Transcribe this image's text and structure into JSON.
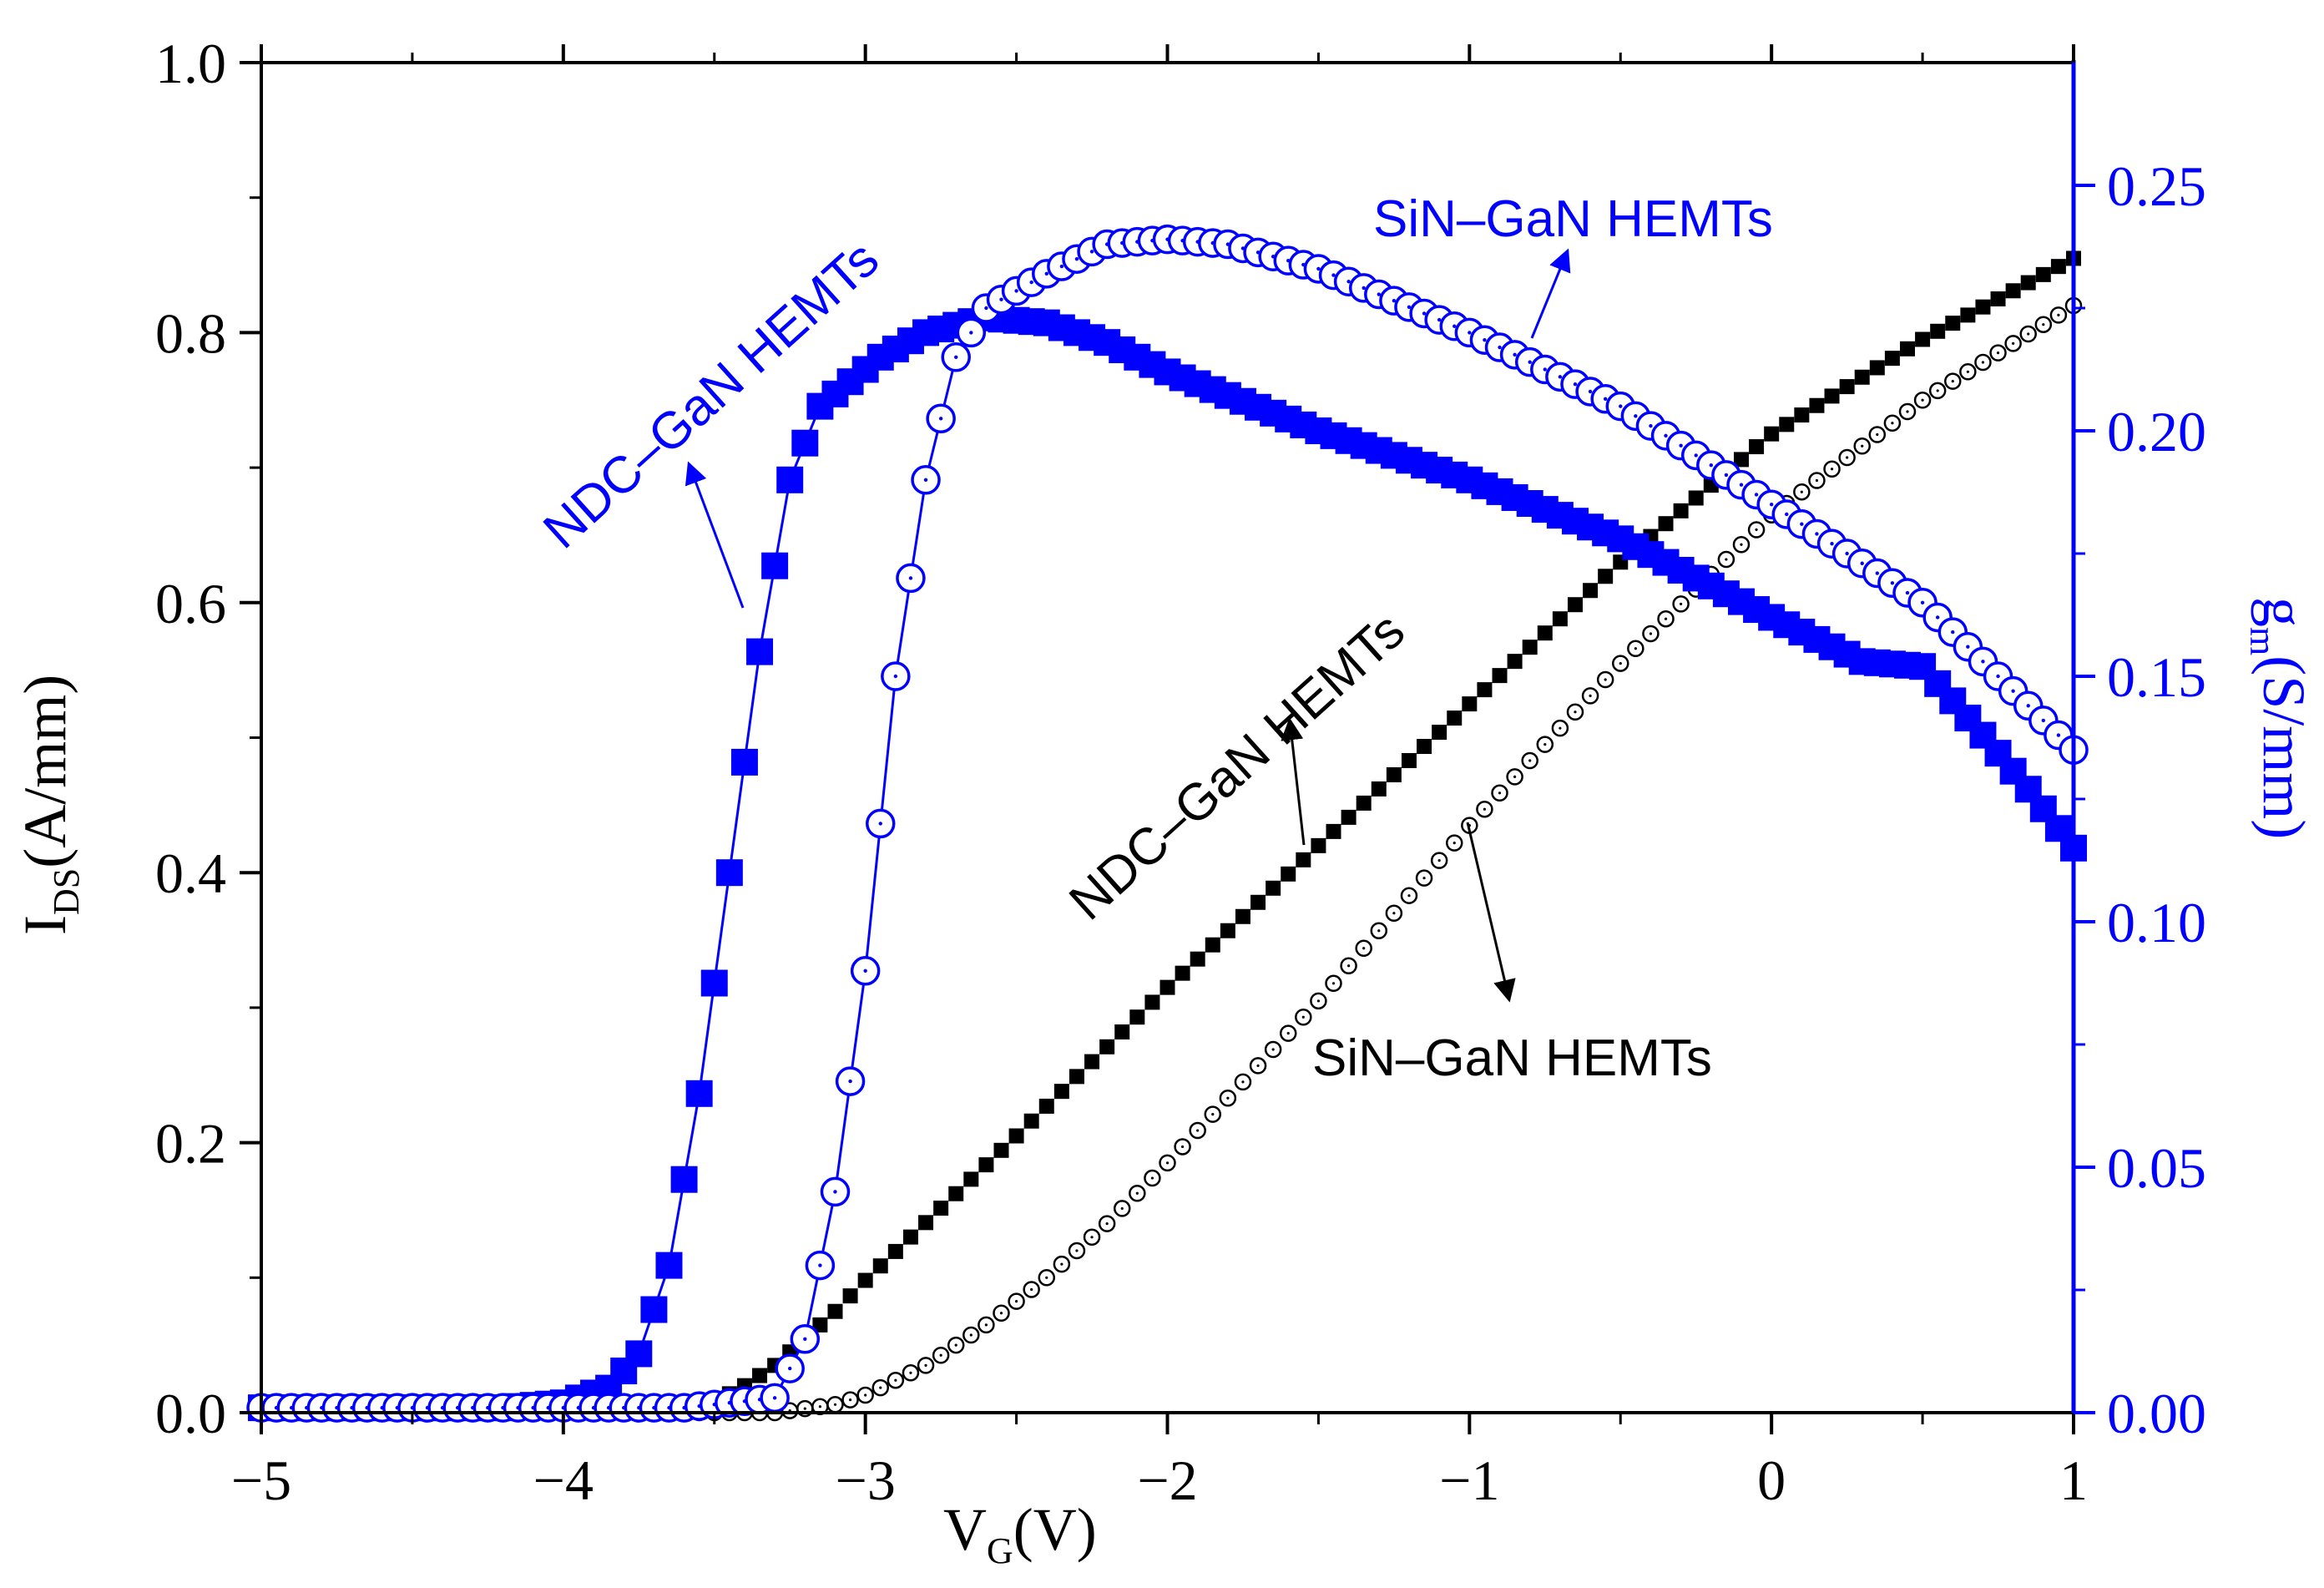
{
  "chart_data": {
    "type": "scatter",
    "title": "",
    "xlabel": {
      "main": "V",
      "sub": "G",
      "unit": "(V)"
    },
    "ylabel_left": {
      "main": "I",
      "sub": "DS",
      "unit": "(A/mm)"
    },
    "ylabel_right": {
      "main": "g",
      "sub": "m",
      "unit": "(S/mm)"
    },
    "xlim": [
      -5,
      1
    ],
    "ylim_left": [
      0,
      1.0
    ],
    "ylim_right": [
      0,
      0.275
    ],
    "x_ticks": [
      -5,
      -4,
      -3,
      -2,
      -1,
      0,
      1
    ],
    "x_tick_labels": [
      "−5",
      "−4",
      "−3",
      "−2",
      "−1",
      "0",
      "1"
    ],
    "y_left_ticks": [
      0,
      0.2,
      0.4,
      0.6,
      0.8,
      1.0
    ],
    "y_left_tick_labels": [
      "0.0",
      "0.2",
      "0.4",
      "0.6",
      "0.8",
      "1.0"
    ],
    "y_right_ticks": [
      0,
      0.05,
      0.1,
      0.15,
      0.2,
      0.25
    ],
    "y_right_tick_labels": [
      "0.00",
      "0.05",
      "0.10",
      "0.15",
      "0.20",
      "0.25"
    ],
    "colors": {
      "black": "#000000",
      "blue": "#0000ff"
    },
    "series": [
      {
        "name": "NDC-GaN HEMTs I_DS",
        "axis": "left",
        "marker": "filled-square",
        "color": "#000000",
        "x": [
          -5.0,
          -4.0,
          -3.6,
          -3.5,
          -3.4,
          -3.3,
          -3.2,
          -3.1,
          -3.0,
          -2.5,
          -2.0,
          -1.5,
          -1.0,
          -0.5,
          0.0,
          0.5,
          1.0
        ],
        "values": [
          0.0,
          0.0,
          0.0,
          0.008,
          0.02,
          0.035,
          0.055,
          0.075,
          0.098,
          0.205,
          0.315,
          0.42,
          0.525,
          0.63,
          0.725,
          0.795,
          0.855
        ]
      },
      {
        "name": "SiN-GaN HEMTs I_DS",
        "axis": "left",
        "marker": "open-circle-small",
        "color": "#000000",
        "x": [
          -5.0,
          -3.3,
          -3.1,
          -3.0,
          -2.8,
          -2.6,
          -2.4,
          -2.2,
          -2.0,
          -1.5,
          -1.0,
          -0.5,
          0.0,
          0.5,
          1.0
        ],
        "values": [
          0.0,
          0.0,
          0.006,
          0.013,
          0.035,
          0.065,
          0.1,
          0.14,
          0.185,
          0.305,
          0.435,
          0.555,
          0.665,
          0.75,
          0.82
        ]
      },
      {
        "name": "NDC-GaN HEMTs g_m",
        "axis": "right",
        "marker": "filled-square-large",
        "color": "#0000ff",
        "x": [
          -5.0,
          -4.2,
          -4.0,
          -3.85,
          -3.75,
          -3.65,
          -3.55,
          -3.45,
          -3.35,
          -3.25,
          -3.15,
          -3.05,
          -2.95,
          -2.8,
          -2.6,
          -2.4,
          -2.2,
          -2.0,
          -1.5,
          -1.0,
          -0.5,
          0.0,
          0.3,
          0.5,
          0.7,
          0.85,
          1.0
        ],
        "values": [
          0.001,
          0.001,
          0.002,
          0.005,
          0.012,
          0.03,
          0.065,
          0.11,
          0.155,
          0.19,
          0.205,
          0.21,
          0.215,
          0.22,
          0.223,
          0.222,
          0.218,
          0.212,
          0.2,
          0.19,
          0.178,
          0.162,
          0.153,
          0.152,
          0.138,
          0.127,
          0.115
        ]
      },
      {
        "name": "SiN-GaN HEMTs g_m",
        "axis": "right",
        "marker": "open-circle-large",
        "color": "#0000ff",
        "x": [
          -5.0,
          -3.6,
          -3.3,
          -3.2,
          -3.1,
          -3.0,
          -2.9,
          -2.8,
          -2.7,
          -2.6,
          -2.4,
          -2.2,
          -2.0,
          -1.8,
          -1.5,
          -1.0,
          -0.5,
          0.0,
          0.5,
          1.0
        ],
        "values": [
          0.001,
          0.001,
          0.003,
          0.015,
          0.045,
          0.09,
          0.15,
          0.19,
          0.215,
          0.225,
          0.232,
          0.238,
          0.239,
          0.238,
          0.233,
          0.22,
          0.205,
          0.185,
          0.165,
          0.135
        ]
      }
    ],
    "annotations": [
      {
        "text": "NDC–GaN HEMTs",
        "color": "#0000ff",
        "target_series": "NDC-GaN HEMTs g_m",
        "rotation_deg": -42
      },
      {
        "text": "SiN–GaN HEMTs",
        "color": "#0000ff",
        "target_series": "SiN-GaN HEMTs g_m",
        "rotation_deg": 0
      },
      {
        "text": "NDC–GaN HEMTs",
        "color": "#000000",
        "target_series": "NDC-GaN HEMTs I_DS",
        "rotation_deg": -42
      },
      {
        "text": "SiN–GaN HEMTs",
        "color": "#000000",
        "target_series": "SiN-GaN HEMTs I_DS",
        "rotation_deg": 0
      }
    ]
  }
}
